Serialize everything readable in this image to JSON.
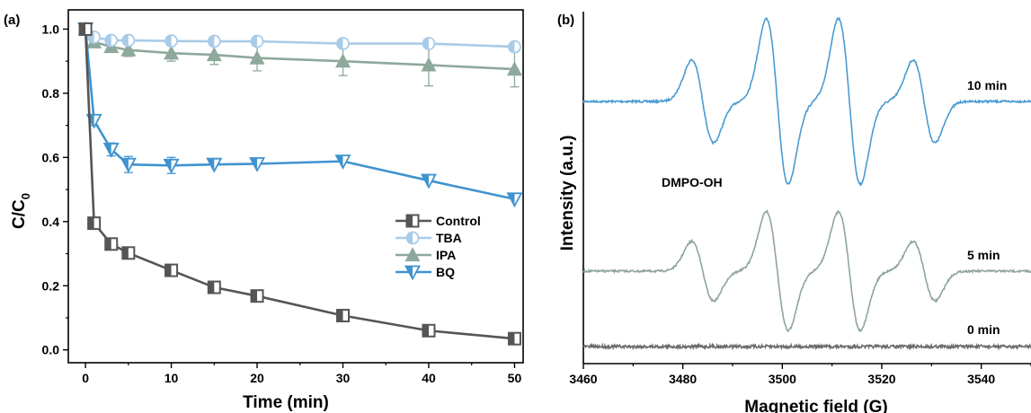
{
  "colors": {
    "Control": "#555555",
    "TBA": "#a8cbe8",
    "IPA": "#8ea89c",
    "BQ": "#3f93cf",
    "epr_10": "#4a9bd1",
    "epr_5": "#8fa59c",
    "epr_0": "#6b6b6b"
  },
  "chart_data": [
    {
      "panel": "(a)",
      "type": "line",
      "xlabel": "Time (min)",
      "ylabel_main": "C/C",
      "ylabel_sub": "0",
      "xlim": [
        -2,
        51
      ],
      "ylim": [
        -0.04,
        1.06
      ],
      "xticks": [
        0,
        10,
        20,
        30,
        40,
        50
      ],
      "yticks": [
        "0.0",
        "0.2",
        "0.4",
        "0.6",
        "0.8",
        "1.0"
      ],
      "grid": false,
      "legend": "center-right",
      "x": [
        0,
        1,
        3,
        5,
        10,
        15,
        20,
        30,
        40,
        50
      ],
      "series": [
        {
          "name": "Control",
          "marker": "square",
          "values": [
            1.0,
            0.395,
            0.33,
            0.302,
            0.248,
            0.195,
            0.168,
            0.107,
            0.06,
            0.035
          ],
          "errors": [
            0.01,
            0.015,
            0.01,
            0.01,
            0.01,
            0.01,
            0.01,
            0.01,
            0.01,
            0.01
          ]
        },
        {
          "name": "TBA",
          "marker": "circle",
          "values": [
            1.0,
            0.975,
            0.965,
            0.965,
            0.963,
            0.962,
            0.962,
            0.955,
            0.955,
            0.945
          ],
          "errors": [
            0.01,
            0.01,
            0.01,
            0.01,
            0.01,
            0.01,
            0.01,
            0.01,
            0.01,
            0.01
          ]
        },
        {
          "name": "IPA",
          "marker": "triangle-up",
          "values": [
            1.0,
            0.96,
            0.945,
            0.935,
            0.925,
            0.92,
            0.91,
            0.9,
            0.888,
            0.875
          ],
          "errors": [
            0.01,
            0.015,
            0.015,
            0.02,
            0.025,
            0.03,
            0.04,
            0.045,
            0.065,
            0.055
          ]
        },
        {
          "name": "BQ",
          "marker": "triangle-down",
          "values": [
            1.0,
            0.715,
            0.625,
            0.578,
            0.575,
            0.578,
            0.58,
            0.588,
            0.528,
            0.47
          ],
          "errors": [
            0.01,
            0.015,
            0.02,
            0.025,
            0.025,
            0.01,
            0.01,
            0.01,
            0.01,
            0.01
          ]
        }
      ]
    },
    {
      "panel": "(b)",
      "type": "line",
      "xlabel": "Magnetic field (G)",
      "ylabel": "Intensity (a.u.)",
      "xlim": [
        3460,
        3550
      ],
      "xticks": [
        3460,
        3480,
        3500,
        3520,
        3540
      ],
      "grid": false,
      "annotation": "DMPO-OH",
      "peak_fields": [
        3484,
        3499,
        3513.5,
        3528.5
      ],
      "peak_ratio": [
        1,
        2,
        2,
        1
      ],
      "series": [
        {
          "name": "10 min",
          "amplitude": 1.0
        },
        {
          "name": "5 min",
          "amplitude": 0.72
        },
        {
          "name": "0 min",
          "amplitude": 0.0
        }
      ]
    }
  ]
}
